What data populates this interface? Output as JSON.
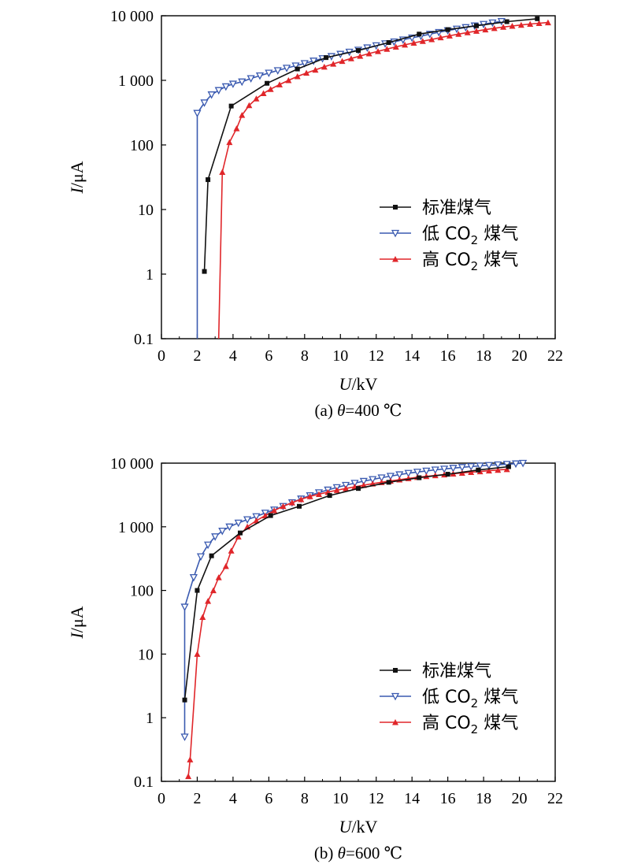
{
  "chart_data": [
    {
      "type": "line",
      "caption": "(a) θ=400 ℃",
      "xlabel": "U/kV",
      "ylabel": "I/μA",
      "xlim": [
        0,
        22
      ],
      "ylim": [
        0.1,
        10000
      ],
      "yscale": "log",
      "x_ticks": [
        "0",
        "2",
        "4",
        "6",
        "8",
        "10",
        "12",
        "14",
        "16",
        "18",
        "20",
        "22"
      ],
      "y_ticks": [
        "0.1",
        "1",
        "10",
        "100",
        "1 000",
        "10 000"
      ],
      "grid": false,
      "legend": "center-right",
      "series": [
        {
          "name": "标准煤气",
          "color": "#111111",
          "marker": "square",
          "points": [
            [
              2.4,
              1.1
            ],
            [
              2.6,
              29
            ],
            [
              3.9,
              400
            ],
            [
              5.9,
              900
            ],
            [
              7.6,
              1500
            ],
            [
              9.2,
              2250
            ],
            [
              11.0,
              2900
            ],
            [
              12.7,
              3850
            ],
            [
              14.4,
              5200
            ],
            [
              16.0,
              6100
            ],
            [
              17.6,
              7000
            ],
            [
              19.3,
              8100
            ],
            [
              21.0,
              9000
            ]
          ]
        },
        {
          "name": "低 CO2 煤气",
          "color": "#3a5ab0",
          "marker": "triangle-down",
          "points": [
            [
              2.0,
              0.1
            ],
            [
              2.0,
              310
            ],
            [
              2.4,
              450
            ],
            [
              2.8,
              600
            ],
            [
              3.2,
              700
            ],
            [
              3.6,
              800
            ],
            [
              4.0,
              880
            ],
            [
              4.5,
              950
            ],
            [
              5.0,
              1070
            ],
            [
              5.5,
              1180
            ],
            [
              6.0,
              1300
            ],
            [
              6.5,
              1420
            ],
            [
              7.0,
              1550
            ],
            [
              7.5,
              1680
            ],
            [
              8.0,
              1830
            ],
            [
              8.5,
              2000
            ],
            [
              9.0,
              2180
            ],
            [
              9.5,
              2350
            ],
            [
              10.0,
              2550
            ],
            [
              10.5,
              2750
            ],
            [
              11.0,
              2950
            ],
            [
              11.5,
              3200
            ],
            [
              12.0,
              3450
            ],
            [
              12.5,
              3700
            ],
            [
              13.0,
              3950
            ],
            [
              13.5,
              4250
            ],
            [
              14.0,
              4550
            ],
            [
              14.5,
              4850
            ],
            [
              15.0,
              5200
            ],
            [
              15.5,
              5550
            ],
            [
              16.0,
              5900
            ],
            [
              16.5,
              6250
            ],
            [
              17.0,
              6600
            ],
            [
              17.5,
              7000
            ],
            [
              18.0,
              7400
            ],
            [
              18.5,
              7800
            ],
            [
              19.0,
              8200
            ]
          ]
        },
        {
          "name": "高 CO2 煤气",
          "color": "#e0262a",
          "marker": "triangle-up",
          "points": [
            [
              3.2,
              0.1
            ],
            [
              3.4,
              38
            ],
            [
              3.8,
              110
            ],
            [
              4.2,
              180
            ],
            [
              4.5,
              290
            ],
            [
              4.9,
              410
            ],
            [
              5.3,
              520
            ],
            [
              5.7,
              630
            ],
            [
              6.1,
              730
            ],
            [
              6.6,
              860
            ],
            [
              7.1,
              1000
            ],
            [
              7.6,
              1150
            ],
            [
              8.1,
              1300
            ],
            [
              8.6,
              1450
            ],
            [
              9.1,
              1620
            ],
            [
              9.6,
              1800
            ],
            [
              10.1,
              1980
            ],
            [
              10.6,
              2180
            ],
            [
              11.1,
              2380
            ],
            [
              11.6,
              2600
            ],
            [
              12.1,
              2820
            ],
            [
              12.6,
              3050
            ],
            [
              13.1,
              3300
            ],
            [
              13.6,
              3550
            ],
            [
              14.1,
              3800
            ],
            [
              14.6,
              4050
            ],
            [
              15.1,
              4300
            ],
            [
              15.6,
              4600
            ],
            [
              16.1,
              4900
            ],
            [
              16.6,
              5200
            ],
            [
              17.1,
              5500
            ],
            [
              17.6,
              5800
            ],
            [
              18.1,
              6100
            ],
            [
              18.6,
              6400
            ],
            [
              19.1,
              6700
            ],
            [
              19.6,
              6950
            ],
            [
              20.1,
              7200
            ],
            [
              20.6,
              7450
            ],
            [
              21.1,
              7650
            ],
            [
              21.6,
              7850
            ]
          ]
        }
      ]
    },
    {
      "type": "line",
      "caption": "(b) θ=600 ℃",
      "xlabel": "U/kV",
      "ylabel": "I/μA",
      "xlim": [
        0,
        22
      ],
      "ylim": [
        0.1,
        10000
      ],
      "yscale": "log",
      "x_ticks": [
        "0",
        "2",
        "4",
        "6",
        "8",
        "10",
        "12",
        "14",
        "16",
        "18",
        "20",
        "22"
      ],
      "y_ticks": [
        "0.1",
        "1",
        "10",
        "100",
        "1 000",
        "10 000"
      ],
      "grid": false,
      "legend": "center-right",
      "series": [
        {
          "name": "标准煤气",
          "color": "#111111",
          "marker": "square",
          "points": [
            [
              1.3,
              1.9
            ],
            [
              2.0,
              100
            ],
            [
              2.8,
              350
            ],
            [
              4.4,
              800
            ],
            [
              6.1,
              1500
            ],
            [
              7.7,
              2100
            ],
            [
              9.4,
              3100
            ],
            [
              11.0,
              4000
            ],
            [
              12.7,
              5000
            ],
            [
              14.4,
              5900
            ],
            [
              16.0,
              6700
            ],
            [
              17.7,
              7800
            ],
            [
              19.4,
              8800
            ]
          ]
        },
        {
          "name": "低 CO2 煤气",
          "color": "#3a5ab0",
          "marker": "triangle-down",
          "points": [
            [
              1.3,
              0.5
            ],
            [
              1.3,
              55
            ],
            [
              1.8,
              160
            ],
            [
              2.2,
              340
            ],
            [
              2.6,
              520
            ],
            [
              3.0,
              700
            ],
            [
              3.4,
              860
            ],
            [
              3.8,
              1000
            ],
            [
              4.3,
              1150
            ],
            [
              4.8,
              1300
            ],
            [
              5.3,
              1450
            ],
            [
              5.8,
              1650
            ],
            [
              6.3,
              1850
            ],
            [
              6.8,
              2100
            ],
            [
              7.3,
              2400
            ],
            [
              7.8,
              2750
            ],
            [
              8.3,
              3100
            ],
            [
              8.8,
              3450
            ],
            [
              9.3,
              3800
            ],
            [
              9.8,
              4150
            ],
            [
              10.3,
              4500
            ],
            [
              10.8,
              4850
            ],
            [
              11.3,
              5200
            ],
            [
              11.8,
              5550
            ],
            [
              12.3,
              5900
            ],
            [
              12.8,
              6250
            ],
            [
              13.3,
              6600
            ],
            [
              13.8,
              6950
            ],
            [
              14.3,
              7250
            ],
            [
              14.8,
              7550
            ],
            [
              15.3,
              7850
            ],
            [
              15.8,
              8100
            ],
            [
              16.3,
              8350
            ],
            [
              16.8,
              8600
            ],
            [
              17.3,
              8850
            ],
            [
              17.8,
              9050
            ],
            [
              18.3,
              9250
            ],
            [
              18.8,
              9450
            ],
            [
              19.3,
              9650
            ],
            [
              19.8,
              9800
            ],
            [
              20.2,
              10000
            ]
          ]
        },
        {
          "name": "高 CO2 煤气",
          "color": "#e0262a",
          "marker": "triangle-up",
          "points": [
            [
              1.5,
              0.12
            ],
            [
              1.6,
              0.22
            ],
            [
              2.0,
              10
            ],
            [
              2.3,
              38
            ],
            [
              2.6,
              68
            ],
            [
              2.9,
              100
            ],
            [
              3.2,
              160
            ],
            [
              3.6,
              240
            ],
            [
              3.9,
              420
            ],
            [
              4.3,
              700
            ],
            [
              4.8,
              1000
            ],
            [
              5.3,
              1250
            ],
            [
              5.8,
              1500
            ],
            [
              6.3,
              1800
            ],
            [
              6.8,
              2100
            ],
            [
              7.3,
              2400
            ],
            [
              7.8,
              2700
            ],
            [
              8.3,
              3000
            ],
            [
              8.8,
              3250
            ],
            [
              9.3,
              3500
            ],
            [
              9.8,
              3750
            ],
            [
              10.3,
              4000
            ],
            [
              10.8,
              4250
            ],
            [
              11.3,
              4500
            ],
            [
              11.8,
              4750
            ],
            [
              12.3,
              5000
            ],
            [
              12.8,
              5250
            ],
            [
              13.3,
              5500
            ],
            [
              13.8,
              5750
            ],
            [
              14.3,
              6000
            ],
            [
              14.8,
              6200
            ],
            [
              15.3,
              6400
            ],
            [
              15.8,
              6600
            ],
            [
              16.3,
              6800
            ],
            [
              16.8,
              7000
            ],
            [
              17.3,
              7200
            ],
            [
              17.8,
              7400
            ],
            [
              18.3,
              7600
            ],
            [
              18.8,
              7800
            ],
            [
              19.3,
              8000
            ]
          ]
        }
      ]
    }
  ]
}
